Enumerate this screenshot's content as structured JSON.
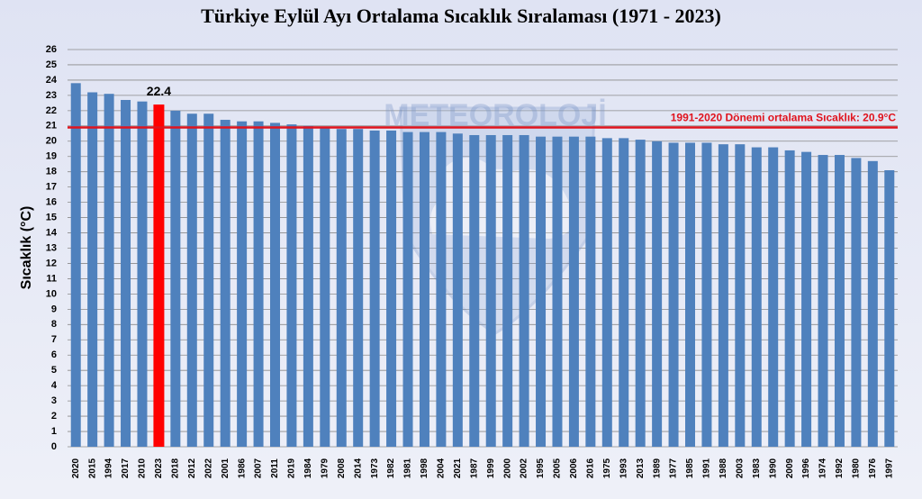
{
  "chart_data": {
    "type": "bar",
    "title": "Türkiye Eylül Ayı Ortalama Sıcaklık Sıralaması (1971 - 2023)",
    "y_label": "Sıcaklık (°C)",
    "watermark": "METEOROLOJİ",
    "categories": [
      "2020",
      "2015",
      "1994",
      "2017",
      "2010",
      "2023",
      "2018",
      "2012",
      "2022",
      "2001",
      "1986",
      "2007",
      "2011",
      "2019",
      "1984",
      "1979",
      "2008",
      "2014",
      "1973",
      "1982",
      "1981",
      "1998",
      "2004",
      "2021",
      "1987",
      "1999",
      "2000",
      "2002",
      "1995",
      "2005",
      "2006",
      "2016",
      "1975",
      "1993",
      "2013",
      "1989",
      "1977",
      "1985",
      "1991",
      "1988",
      "2003",
      "1983",
      "1990",
      "2009",
      "1996",
      "1974",
      "1992",
      "1980",
      "1976",
      "1997"
    ],
    "values": [
      23.8,
      23.2,
      23.1,
      22.7,
      22.6,
      22.4,
      22.0,
      21.8,
      21.8,
      21.4,
      21.3,
      21.3,
      21.2,
      21.1,
      21.0,
      20.9,
      20.8,
      20.8,
      20.7,
      20.7,
      20.6,
      20.6,
      20.6,
      20.5,
      20.4,
      20.4,
      20.4,
      20.4,
      20.3,
      20.3,
      20.3,
      20.3,
      20.2,
      20.2,
      20.1,
      20.0,
      19.9,
      19.9,
      19.9,
      19.8,
      19.8,
      19.6,
      19.6,
      19.4,
      19.3,
      19.1,
      19.1,
      18.9,
      18.7,
      18.1
    ],
    "color": "#4f81bd",
    "highlight": "2023",
    "highlight_color": "#ff0000",
    "reference_line": {
      "value": 20.9,
      "label": "1991-2020 Dönemi ortalama Sıcaklık: 20.9°C",
      "color": "#e0141e"
    },
    "ylim": [
      0,
      26
    ],
    "yticks": [
      0,
      1,
      2,
      3,
      4,
      5,
      6,
      7,
      8,
      9,
      10,
      11,
      12,
      13,
      14,
      15,
      16,
      17,
      18,
      19,
      20,
      21,
      22,
      23,
      24,
      25,
      26
    ],
    "grid": true
  }
}
